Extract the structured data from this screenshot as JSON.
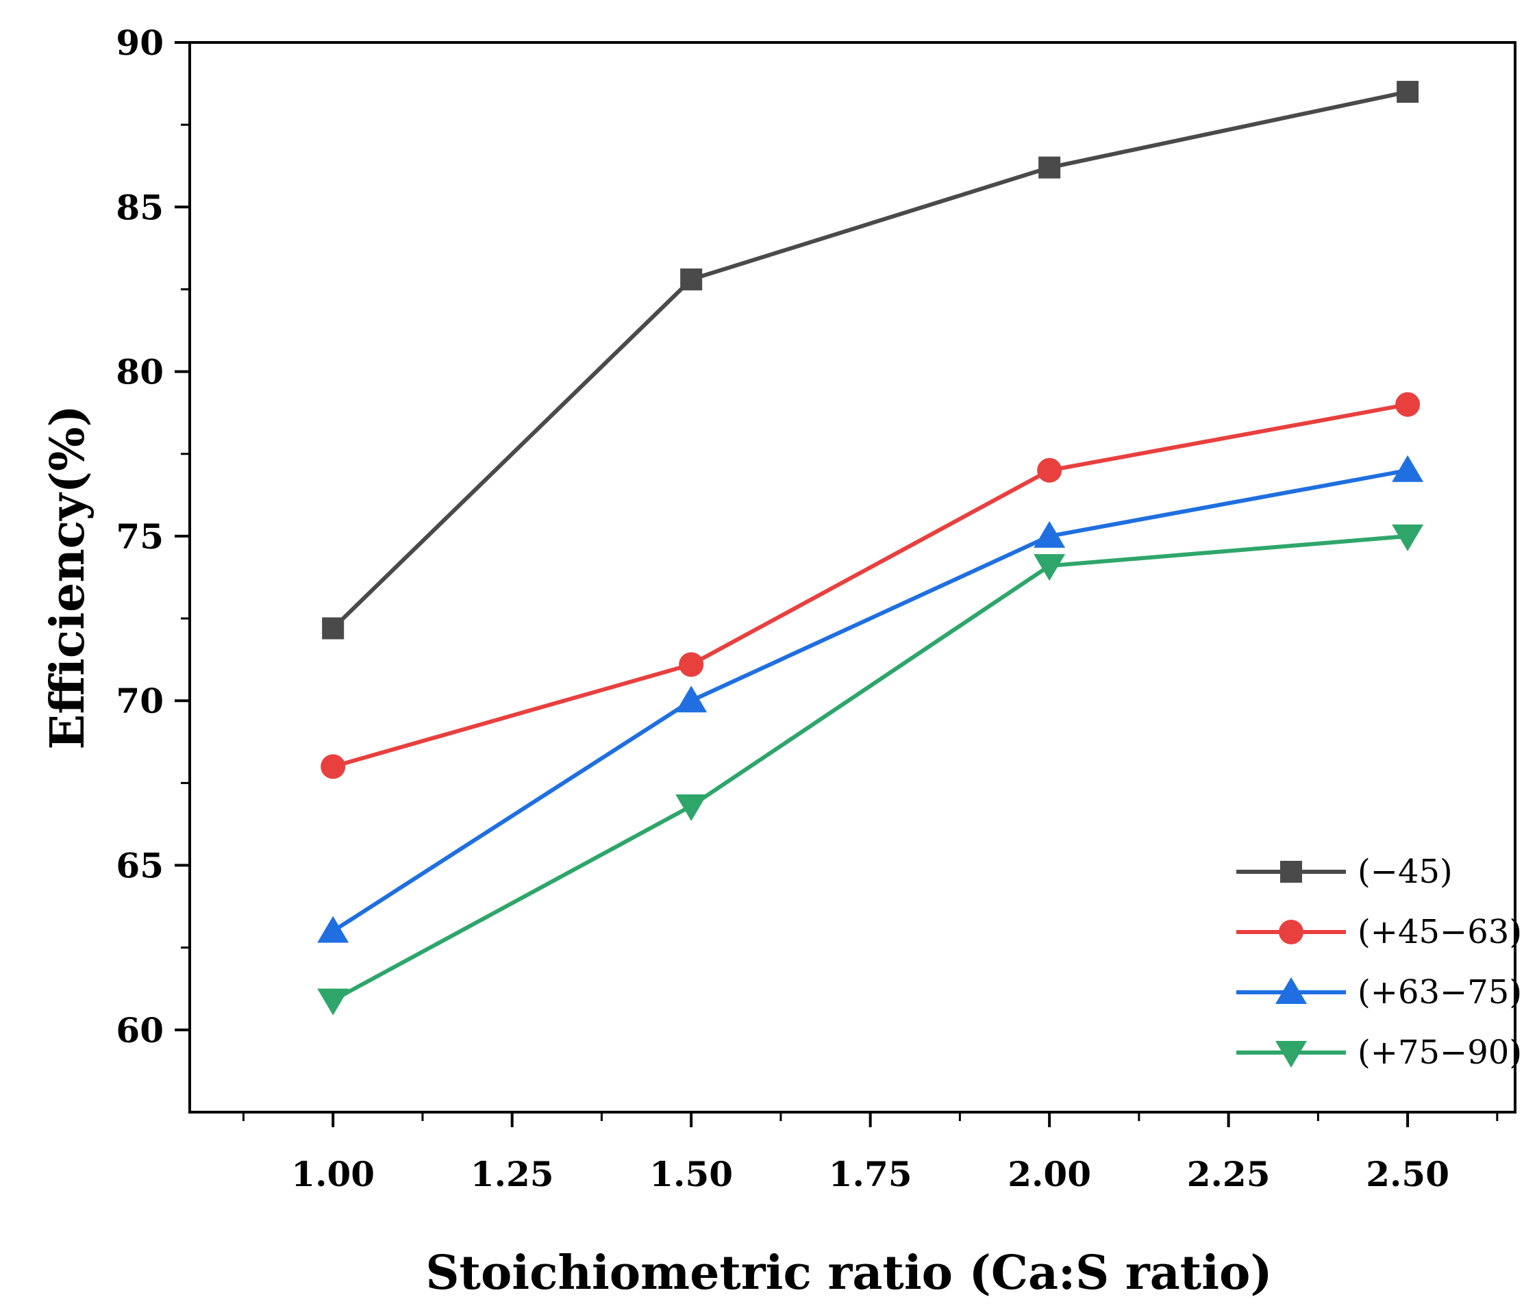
{
  "chart_data": {
    "type": "line",
    "title": "",
    "xlabel": "Stoichiometric ratio (Ca:S ratio)",
    "ylabel": "Efficiency(%)",
    "x": [
      1.0,
      1.5,
      2.0,
      2.5
    ],
    "xlim": [
      0.8,
      2.65
    ],
    "ylim": [
      57.5,
      90
    ],
    "x_ticks": [
      1.0,
      1.25,
      1.5,
      1.75,
      2.0,
      2.25,
      2.5
    ],
    "x_tick_labels": [
      "1.00",
      "1.25",
      "1.50",
      "1.75",
      "2.00",
      "2.25",
      "2.50"
    ],
    "y_ticks": [
      60,
      65,
      70,
      75,
      80,
      85,
      90
    ],
    "y_tick_labels": [
      "60",
      "65",
      "70",
      "75",
      "80",
      "85",
      "90"
    ],
    "grid": false,
    "legend_position": "bottom-right",
    "series": [
      {
        "name": "(−45)",
        "values": [
          72.2,
          82.8,
          86.2,
          88.5
        ],
        "color": "#4a4a4a",
        "marker": "square"
      },
      {
        "name": "(+45−63)",
        "values": [
          68.0,
          71.1,
          77.0,
          79.0
        ],
        "color": "#e8403f",
        "marker": "circle"
      },
      {
        "name": "(+63−75)",
        "values": [
          63.0,
          70.0,
          75.0,
          77.0
        ],
        "color": "#1f6fe0",
        "marker": "triangle-up"
      },
      {
        "name": "(+75−90)",
        "values": [
          60.9,
          66.8,
          74.1,
          75.0
        ],
        "color": "#2ea66a",
        "marker": "triangle-down"
      }
    ]
  }
}
